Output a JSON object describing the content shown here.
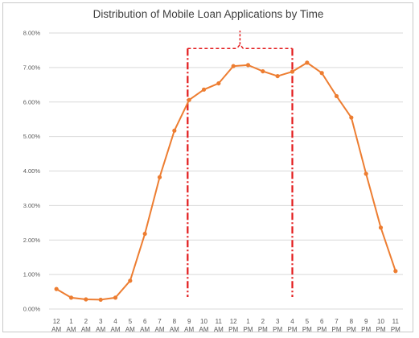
{
  "chart_data": {
    "type": "line",
    "title": "Distribution of Mobile Loan Applications by Time",
    "xlabel": "",
    "ylabel": "",
    "ylim": [
      0,
      8
    ],
    "y_tick_values": [
      0,
      1,
      2,
      3,
      4,
      5,
      6,
      7,
      8
    ],
    "y_tick_labels": [
      "0.00%",
      "1.00%",
      "2.00%",
      "3.00%",
      "4.00%",
      "5.00%",
      "6.00%",
      "7.00%",
      "8.00%"
    ],
    "categories": [
      {
        "hour": "12",
        "period": "AM"
      },
      {
        "hour": "1",
        "period": "AM"
      },
      {
        "hour": "2",
        "period": "AM"
      },
      {
        "hour": "3",
        "period": "AM"
      },
      {
        "hour": "4",
        "period": "AM"
      },
      {
        "hour": "5",
        "period": "AM"
      },
      {
        "hour": "6",
        "period": "AM"
      },
      {
        "hour": "7",
        "period": "AM"
      },
      {
        "hour": "8",
        "period": "AM"
      },
      {
        "hour": "9",
        "period": "AM"
      },
      {
        "hour": "10",
        "period": "AM"
      },
      {
        "hour": "11",
        "period": "AM"
      },
      {
        "hour": "12",
        "period": "PM"
      },
      {
        "hour": "1",
        "period": "PM"
      },
      {
        "hour": "2",
        "period": "PM"
      },
      {
        "hour": "3",
        "period": "PM"
      },
      {
        "hour": "4",
        "period": "PM"
      },
      {
        "hour": "5",
        "period": "PM"
      },
      {
        "hour": "6",
        "period": "PM"
      },
      {
        "hour": "7",
        "period": "PM"
      },
      {
        "hour": "8",
        "period": "PM"
      },
      {
        "hour": "9",
        "period": "PM"
      },
      {
        "hour": "10",
        "period": "PM"
      },
      {
        "hour": "11",
        "period": "PM"
      }
    ],
    "series": [
      {
        "color": "#ed7d31",
        "values": [
          0.58,
          0.33,
          0.28,
          0.27,
          0.33,
          0.82,
          2.18,
          3.82,
          5.17,
          6.06,
          6.36,
          6.54,
          7.04,
          7.07,
          6.89,
          6.75,
          6.88,
          7.14,
          6.84,
          6.17,
          5.55,
          3.92,
          2.36,
          1.1
        ]
      }
    ],
    "annotation": {
      "description": "red dash-dot bracket spanning 9 AM to 4 PM",
      "color": "#e31a1c",
      "from_category_index": 8.9,
      "to_category_index": 16,
      "y_bottom": 0.35,
      "y_top": 7.55
    },
    "grid": true,
    "legend": "none"
  }
}
